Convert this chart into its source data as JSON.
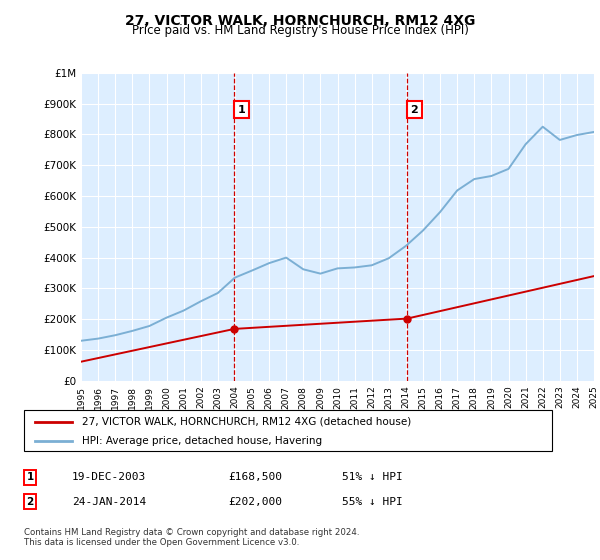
{
  "title": "27, VICTOR WALK, HORNCHURCH, RM12 4XG",
  "subtitle": "Price paid vs. HM Land Registry's House Price Index (HPI)",
  "legend_line1": "27, VICTOR WALK, HORNCHURCH, RM12 4XG (detached house)",
  "legend_line2": "HPI: Average price, detached house, Havering",
  "footnote": "Contains HM Land Registry data © Crown copyright and database right 2024.\nThis data is licensed under the Open Government Licence v3.0.",
  "annotation1_label": "1",
  "annotation1_date": "19-DEC-2003",
  "annotation1_price": "£168,500",
  "annotation1_hpi": "51% ↓ HPI",
  "annotation2_label": "2",
  "annotation2_date": "24-JAN-2014",
  "annotation2_price": "£202,000",
  "annotation2_hpi": "55% ↓ HPI",
  "red_line_color": "#cc0000",
  "blue_line_color": "#7bafd4",
  "background_plot": "#ddeeff",
  "yticks": [
    0,
    100000,
    200000,
    300000,
    400000,
    500000,
    600000,
    700000,
    800000,
    900000,
    1000000
  ],
  "ytick_labels": [
    "£0",
    "£100K",
    "£200K",
    "£300K",
    "£400K",
    "£500K",
    "£600K",
    "£700K",
    "£800K",
    "£900K",
    "£1M"
  ],
  "hpi_years": [
    1995,
    1996,
    1997,
    1998,
    1999,
    2000,
    2001,
    2002,
    2003,
    2004,
    2005,
    2006,
    2007,
    2008,
    2009,
    2010,
    2011,
    2012,
    2013,
    2014,
    2015,
    2016,
    2017,
    2018,
    2019,
    2020,
    2021,
    2022,
    2023,
    2024,
    2025
  ],
  "hpi_values": [
    130000,
    137000,
    148000,
    162000,
    178000,
    205000,
    228000,
    258000,
    285000,
    335000,
    358000,
    382000,
    400000,
    362000,
    348000,
    365000,
    368000,
    375000,
    398000,
    438000,
    488000,
    548000,
    618000,
    655000,
    665000,
    688000,
    768000,
    825000,
    782000,
    798000,
    808000
  ],
  "paid_years": [
    1995,
    2003.97,
    2014.07,
    2025
  ],
  "paid_values": [
    62000,
    168500,
    202000,
    340000
  ],
  "sale1_x": 2003.97,
  "sale1_y": 168500,
  "sale2_x": 2014.07,
  "sale2_y": 202000,
  "xmin": 1995,
  "xmax": 2025,
  "ymin": 0,
  "ymax": 1000000
}
